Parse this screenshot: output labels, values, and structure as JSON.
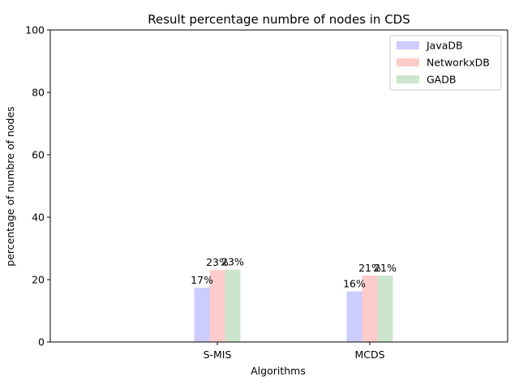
{
  "chart_data": {
    "type": "bar",
    "title": "Result percentage numbre of nodes in CDS",
    "xlabel": "Algorithms",
    "ylabel": "percentage of numbre of nodes",
    "categories": [
      "S-MIS",
      "MCDS"
    ],
    "ylim": [
      0,
      100
    ],
    "yticks": [
      0,
      20,
      40,
      60,
      80,
      100
    ],
    "grid": false,
    "legend_position": "top-right",
    "series": [
      {
        "name": "JavaDB",
        "values": [
          17.4,
          16.2
        ],
        "labels": [
          "17%",
          "16%"
        ],
        "color": "#ccccff"
      },
      {
        "name": "NetworkxDB",
        "values": [
          23.1,
          21.3
        ],
        "labels": [
          "23%",
          "21%"
        ],
        "color": "#ffcccc"
      },
      {
        "name": "GADB",
        "values": [
          23.2,
          21.3
        ],
        "labels": [
          "23%",
          "21%"
        ],
        "color": "#cce5cc"
      }
    ]
  }
}
